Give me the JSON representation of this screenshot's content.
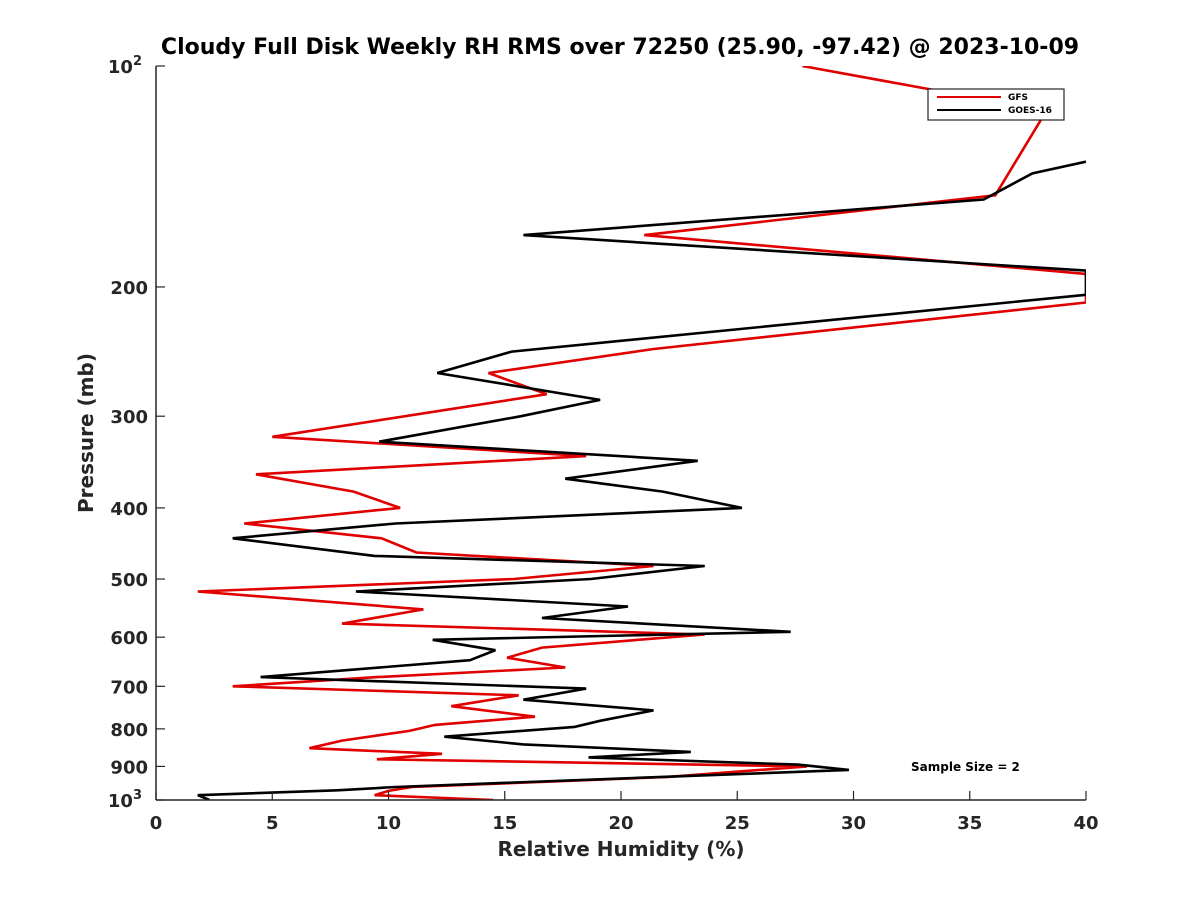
{
  "chart_data": {
    "type": "line",
    "title": "Cloudy Full Disk Weekly RH RMS over 72250 (25.90, -97.42) @ 2023-10-09",
    "xlabel": "Relative Humidity (%)",
    "ylabel": "Pressure (mb)",
    "xlim": [
      0,
      40
    ],
    "ylim": [
      100,
      1000
    ],
    "y_scale": "log",
    "y_reversed": true,
    "x_ticks": [
      "0",
      "5",
      "10",
      "15",
      "20",
      "25",
      "30",
      "35",
      "40"
    ],
    "y_tick_labels": [
      {
        "value": 100,
        "base": "10",
        "exp": "2"
      },
      {
        "value": 200,
        "base": "200",
        "exp": ""
      },
      {
        "value": 300,
        "base": "300",
        "exp": ""
      },
      {
        "value": 400,
        "base": "400",
        "exp": ""
      },
      {
        "value": 500,
        "base": "500",
        "exp": ""
      },
      {
        "value": 600,
        "base": "600",
        "exp": ""
      },
      {
        "value": 700,
        "base": "700",
        "exp": ""
      },
      {
        "value": 800,
        "base": "800",
        "exp": ""
      },
      {
        "value": 900,
        "base": "900",
        "exp": ""
      },
      {
        "value": 1000,
        "base": "10",
        "exp": "3"
      }
    ],
    "grid": false,
    "legend_position": "top-right",
    "annotation": "Sample Size = 2",
    "annotation_position": "bottom-right",
    "series": [
      {
        "name": "GFS",
        "color": "#e00000",
        "points": [
          [
            27.8,
            100
          ],
          [
            38.3,
            115
          ],
          [
            36.1,
            150
          ],
          [
            21.0,
            170
          ],
          [
            40.0,
            192
          ],
          [
            40.0,
            210
          ],
          [
            21.4,
            243
          ],
          [
            14.3,
            262
          ],
          [
            16.8,
            280
          ],
          [
            5.0,
            320
          ],
          [
            18.5,
            340
          ],
          [
            4.3,
            360
          ],
          [
            8.5,
            380
          ],
          [
            10.5,
            400
          ],
          [
            3.8,
            420
          ],
          [
            9.7,
            440
          ],
          [
            11.2,
            460
          ],
          [
            21.4,
            480
          ],
          [
            15.4,
            500
          ],
          [
            1.8,
            520
          ],
          [
            11.5,
            550
          ],
          [
            8.0,
            575
          ],
          [
            23.6,
            595
          ],
          [
            16.6,
            620
          ],
          [
            15.1,
            640
          ],
          [
            17.6,
            660
          ],
          [
            9.5,
            680
          ],
          [
            3.3,
            700
          ],
          [
            15.6,
            720
          ],
          [
            12.7,
            745
          ],
          [
            16.3,
            770
          ],
          [
            12.0,
            790
          ],
          [
            10.9,
            805
          ],
          [
            8.0,
            830
          ],
          [
            6.6,
            850
          ],
          [
            12.3,
            865
          ],
          [
            9.5,
            880
          ],
          [
            28.0,
            900
          ],
          [
            22.0,
            930
          ],
          [
            11.0,
            960
          ],
          [
            10.0,
            972
          ],
          [
            9.4,
            985
          ],
          [
            14.5,
            1000
          ]
        ]
      },
      {
        "name": "GOES-16",
        "color": "#000000",
        "points": [
          [
            40.0,
            135
          ],
          [
            37.7,
            140
          ],
          [
            35.6,
            152
          ],
          [
            15.8,
            170
          ],
          [
            40.0,
            190
          ],
          [
            40.0,
            205
          ],
          [
            15.3,
            245
          ],
          [
            12.1,
            262
          ],
          [
            19.1,
            285
          ],
          [
            15.7,
            300
          ],
          [
            9.6,
            325
          ],
          [
            23.3,
            345
          ],
          [
            17.6,
            365
          ],
          [
            21.8,
            380
          ],
          [
            25.2,
            400
          ],
          [
            10.3,
            420
          ],
          [
            3.3,
            440
          ],
          [
            9.4,
            465
          ],
          [
            23.6,
            480
          ],
          [
            18.7,
            500
          ],
          [
            8.6,
            520
          ],
          [
            20.3,
            545
          ],
          [
            16.6,
            565
          ],
          [
            27.3,
            590
          ],
          [
            11.9,
            605
          ],
          [
            14.6,
            625
          ],
          [
            13.5,
            645
          ],
          [
            4.5,
            680
          ],
          [
            18.5,
            705
          ],
          [
            15.8,
            730
          ],
          [
            21.4,
            755
          ],
          [
            19.1,
            780
          ],
          [
            18.0,
            795
          ],
          [
            12.4,
            820
          ],
          [
            15.8,
            840
          ],
          [
            23.0,
            860
          ],
          [
            18.6,
            875
          ],
          [
            27.6,
            895
          ],
          [
            29.8,
            910
          ],
          [
            10.3,
            960
          ],
          [
            7.8,
            970
          ],
          [
            1.8,
            985
          ],
          [
            2.3,
            1000
          ]
        ]
      }
    ]
  }
}
